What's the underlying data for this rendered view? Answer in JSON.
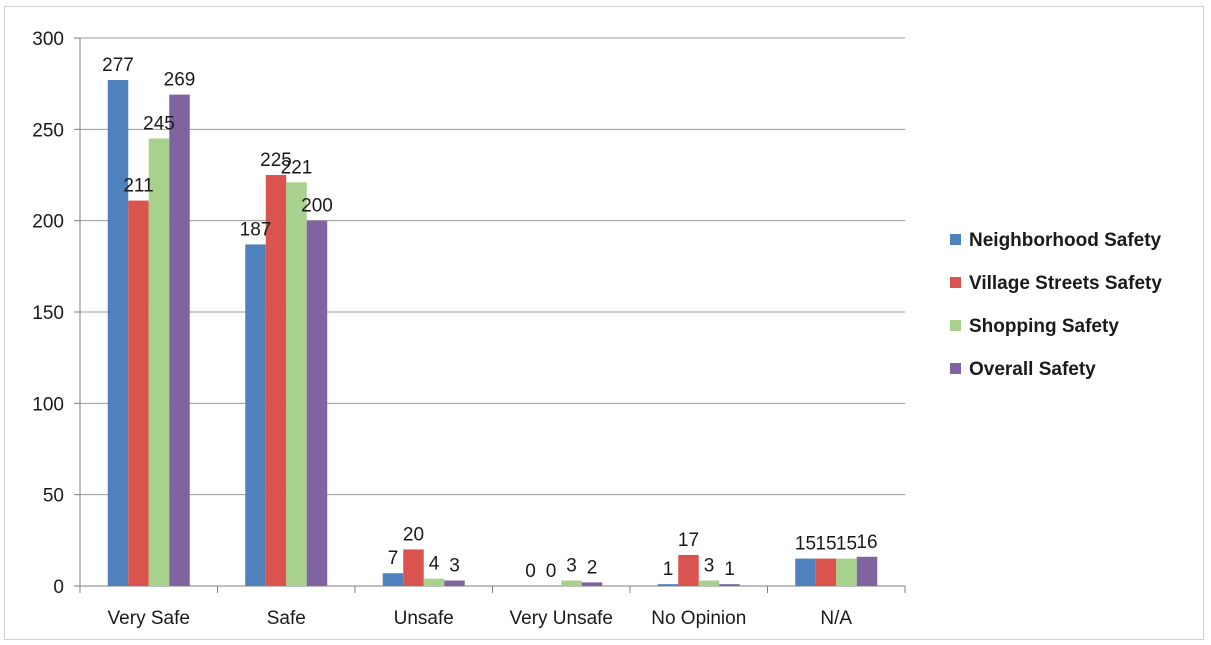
{
  "chart_data": {
    "type": "bar",
    "title": "",
    "xlabel": "",
    "ylabel": "",
    "categories": [
      "Very Safe",
      "Safe",
      "Unsafe",
      "Very Unsafe",
      "No Opinion",
      "N/A"
    ],
    "series": [
      {
        "name": "Neighborhood Safety",
        "color": "#4f81bd",
        "values": [
          277,
          187,
          7,
          0,
          1,
          15
        ]
      },
      {
        "name": "Village Streets Safety",
        "color": "#d9534f",
        "values": [
          211,
          225,
          20,
          0,
          17,
          15
        ]
      },
      {
        "name": "Shopping Safety",
        "color": "#a9d18e",
        "values": [
          245,
          221,
          4,
          3,
          3,
          15
        ]
      },
      {
        "name": "Overall Safety",
        "color": "#8064a2",
        "values": [
          269,
          200,
          3,
          2,
          1,
          16
        ]
      }
    ],
    "ylim": [
      0,
      300
    ],
    "yticks": [
      0,
      50,
      100,
      150,
      200,
      250,
      300
    ],
    "grid": true,
    "legend_position": "right"
  }
}
